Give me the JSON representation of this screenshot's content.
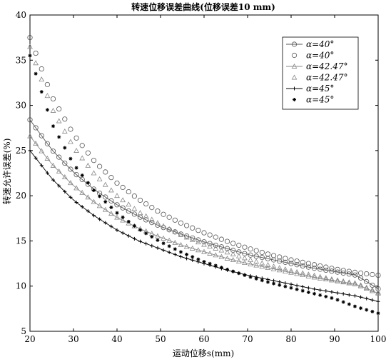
{
  "chart_data": {
    "type": "line",
    "title": "转速位移误差曲线(位移误差10 mm)",
    "xlabel": "运动位移s(mm)",
    "ylabel": "转速允许误差(%)",
    "xlim": [
      20,
      100
    ],
    "ylim": [
      5,
      40
    ],
    "xticks": [
      20,
      30,
      40,
      50,
      60,
      70,
      80,
      90,
      100
    ],
    "yticks": [
      5,
      10,
      15,
      20,
      25,
      30,
      35,
      40
    ],
    "grid": false,
    "legend_position": "top-right",
    "x_start": 20,
    "x_step": 1.3333,
    "series": [
      {
        "name": "α=40°",
        "marker": "circle",
        "line": true,
        "color": "#555555",
        "x": [
          20,
          25,
          30,
          35,
          40,
          45,
          50,
          55,
          60,
          65,
          70,
          75,
          80,
          85,
          90,
          95,
          100
        ],
        "y": [
          28.4,
          25.1,
          22.6,
          20.6,
          19.0,
          17.7,
          16.6,
          15.7,
          14.9,
          14.2,
          13.5,
          13.0,
          12.5,
          12.0,
          11.6,
          11.2,
          9.7
        ]
      },
      {
        "name": "α=40°",
        "marker": "circle",
        "line": false,
        "color": "#555555",
        "x": [
          20,
          25,
          30,
          35,
          40,
          45,
          50,
          55,
          60,
          65,
          70,
          75,
          80,
          85,
          90,
          95,
          100
        ],
        "y": [
          37.5,
          31.0,
          26.8,
          23.7,
          21.4,
          19.6,
          18.1,
          16.9,
          15.9,
          15.0,
          14.2,
          13.5,
          12.9,
          12.4,
          11.9,
          11.5,
          11.2
        ]
      },
      {
        "name": "α=42.47°",
        "marker": "triangle",
        "line": true,
        "color": "#888888",
        "x": [
          20,
          25,
          30,
          35,
          40,
          45,
          50,
          55,
          60,
          65,
          70,
          75,
          80,
          85,
          90,
          95,
          100
        ],
        "y": [
          26.6,
          23.5,
          21.1,
          19.2,
          17.6,
          16.4,
          15.4,
          14.5,
          13.8,
          13.1,
          12.5,
          12.0,
          11.5,
          11.0,
          10.6,
          10.2,
          9.2
        ]
      },
      {
        "name": "α=42.47°",
        "marker": "triangle",
        "line": false,
        "color": "#888888",
        "x": [
          20,
          25,
          30,
          35,
          40,
          45,
          50,
          55,
          60,
          65,
          70,
          75,
          80,
          85,
          90,
          95,
          100
        ],
        "y": [
          36.5,
          29.7,
          25.4,
          22.3,
          20.0,
          18.2,
          16.8,
          15.6,
          14.6,
          13.8,
          13.0,
          12.3,
          11.7,
          11.2,
          10.7,
          10.3,
          9.3
        ]
      },
      {
        "name": "α=45°",
        "marker": "plus",
        "line": true,
        "color": "#000000",
        "x": [
          20,
          25,
          30,
          35,
          40,
          45,
          50,
          55,
          60,
          65,
          70,
          75,
          80,
          85,
          90,
          95,
          100
        ],
        "y": [
          25.0,
          21.9,
          19.5,
          17.7,
          16.2,
          15.0,
          14.1,
          13.2,
          12.5,
          11.8,
          11.2,
          10.7,
          10.2,
          9.7,
          9.3,
          8.9,
          8.3
        ]
      },
      {
        "name": "α=45°",
        "marker": "star",
        "line": false,
        "color": "#000000",
        "x": [
          20,
          25,
          30,
          35,
          40,
          45,
          50,
          55,
          60,
          65,
          70,
          75,
          80,
          85,
          90,
          95,
          100
        ],
        "y": [
          35.5,
          28.0,
          23.5,
          20.4,
          18.1,
          16.3,
          14.9,
          13.7,
          12.7,
          11.9,
          11.1,
          10.4,
          9.8,
          9.2,
          8.6,
          7.7,
          7.0
        ]
      }
    ]
  }
}
